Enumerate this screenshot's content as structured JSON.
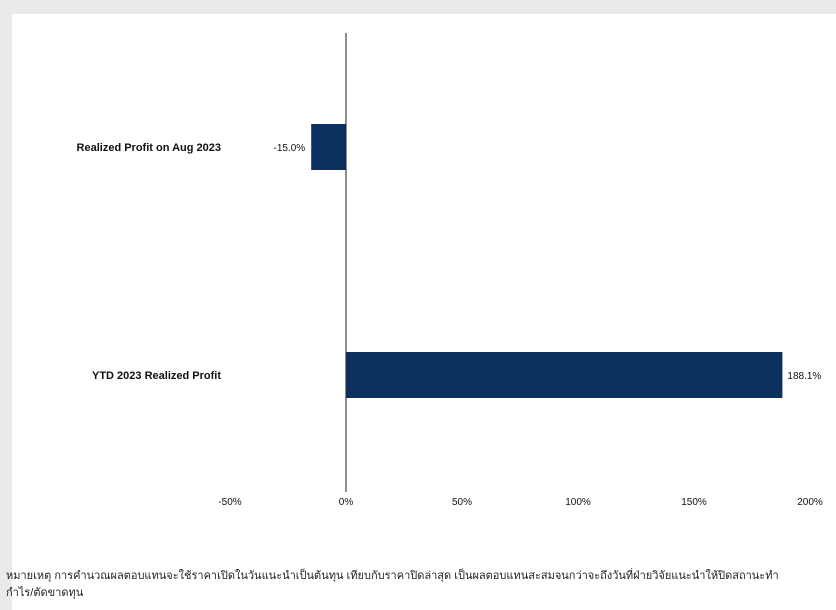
{
  "chart_data": {
    "type": "bar",
    "orientation": "horizontal",
    "categories": [
      "Realized Profit on Aug 2023",
      "YTD 2023  Realized Profit"
    ],
    "values": [
      -15.0,
      188.1
    ],
    "value_labels": [
      "-15.0%",
      "188.1%"
    ],
    "xlim": [
      -50,
      200
    ],
    "xticks": [
      -50,
      0,
      50,
      100,
      150,
      200
    ],
    "xtick_labels": [
      "-50%",
      "0%",
      "50%",
      "100%",
      "150%",
      "200%"
    ],
    "title": "",
    "xlabel": "",
    "ylabel": "",
    "grid": false,
    "bar_color": "#0b2f5e"
  },
  "note": {
    "line1": "หมายเหตุ การคำนวณผลตอบแทนจะใช้ราคาเปิดในวันแนะนำเป็นต้นทุน  เทียบกับราคาปิดล่าสุด  เป็นผลตอบแทนสะสมจนกว่าจะถึงวันที่ฝ่ายวิจัยแนะนำให้ปิดสถานะทำ",
    "line2": "กำไร/ตัดขาดทุน"
  }
}
